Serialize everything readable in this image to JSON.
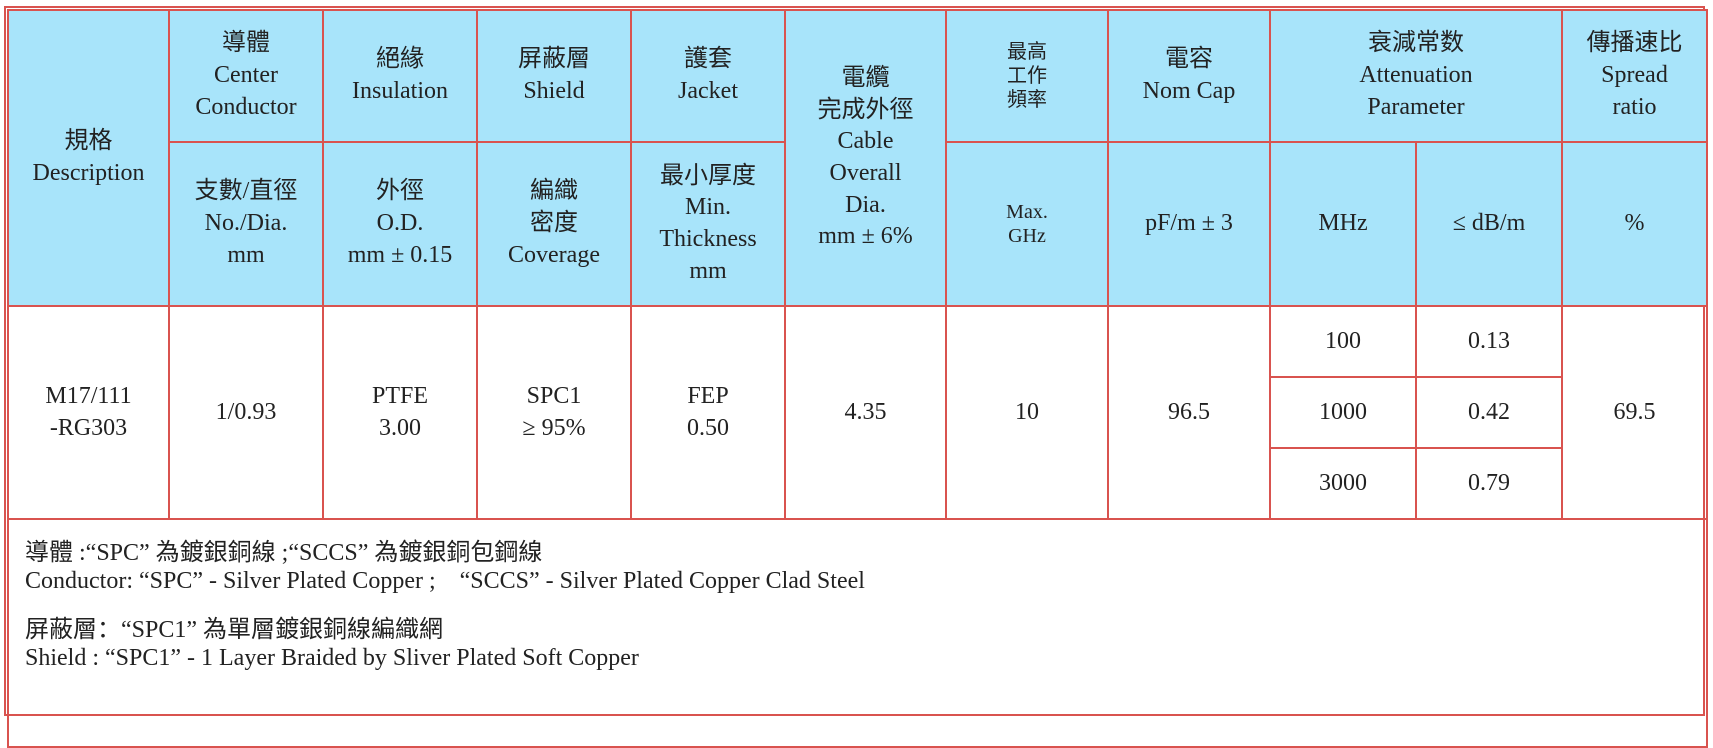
{
  "header": {
    "row1": [
      {
        "lines": [
          "規格",
          "Description"
        ]
      },
      {
        "lines": [
          "導體",
          "Center",
          "Conductor"
        ]
      },
      {
        "lines": [
          "絕緣",
          "Insulation"
        ]
      },
      {
        "lines": [
          "屏蔽層",
          "Shield"
        ]
      },
      {
        "lines": [
          "護套",
          "Jacket"
        ]
      },
      {
        "lines": [
          "電纜",
          "完成外徑",
          "Cable",
          "Overall",
          "Dia.",
          "mm ± 6%"
        ]
      },
      {
        "lines": [
          "最高",
          "工作",
          "頻率"
        ]
      },
      {
        "lines": [
          "電容",
          "Nom Cap"
        ]
      },
      {
        "lines": [
          "衰減常数",
          "Attenuation",
          "Parameter"
        ]
      },
      {
        "lines": [
          "傳播速比",
          "Spread",
          "ratio"
        ]
      }
    ],
    "row2": [
      {
        "lines": [
          "支數/直徑",
          "No./Dia.",
          "mm"
        ]
      },
      {
        "lines": [
          "外徑",
          "O.D.",
          "mm ± 0.15"
        ]
      },
      {
        "lines": [
          "編織",
          "密度",
          "Coverage"
        ]
      },
      {
        "lines": [
          "最小厚度",
          "Min.",
          "Thickness",
          "mm"
        ]
      },
      {
        "lines": [
          "Max.",
          "GHz"
        ]
      },
      {
        "lines": [
          "pF/m ± 3"
        ]
      },
      {
        "lines": [
          "MHz"
        ]
      },
      {
        "lines": [
          "≤ dB/m"
        ]
      },
      {
        "lines": [
          "%"
        ]
      }
    ]
  },
  "body": {
    "description": [
      "M17/111",
      "-RG303"
    ],
    "conductor": [
      "1/0.93"
    ],
    "insulation": [
      "PTFE",
      "3.00"
    ],
    "shield": [
      "SPC1",
      "≥ 95%"
    ],
    "jacket": [
      "FEP",
      "0.50"
    ],
    "diameter": [
      "4.35"
    ],
    "max_freq": [
      "10"
    ],
    "capacitance": [
      "96.5"
    ],
    "attenuation": [
      {
        "mhz": "100",
        "db": "0.13"
      },
      {
        "mhz": "1000",
        "db": "0.42"
      },
      {
        "mhz": "3000",
        "db": "0.79"
      }
    ],
    "spread": [
      "69.5"
    ]
  },
  "notes": [
    [
      "導體 :“SPC” 為鍍銀銅線 ;“SCCS” 為鍍銀銅包鋼線",
      "Conductor: “SPC” - Silver Plated Copper ;    “SCCS” - Silver Plated Copper Clad Steel"
    ],
    [
      "屏蔽層：“SPC1” 為單層鍍銀銅線編織網",
      "Shield : “SPC1” - 1 Layer Braided by Sliver Plated Soft Copper"
    ]
  ]
}
